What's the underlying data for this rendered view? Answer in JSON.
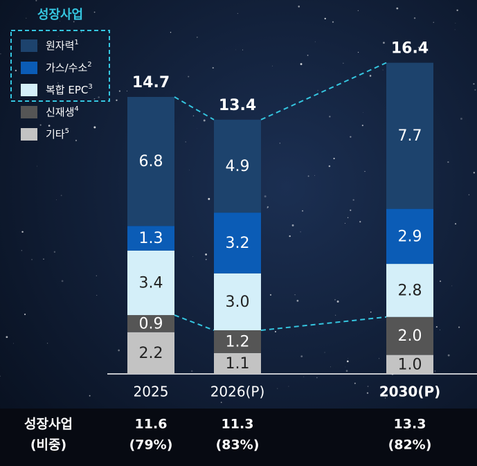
{
  "chart_data": {
    "type": "stacked-bar",
    "legend_title": "성장사업",
    "categories": [
      "2025",
      "2026(P)",
      "2030(P)"
    ],
    "highlight_category": 2,
    "series": [
      {
        "name": "기타",
        "note": "5",
        "color": "#c3c3c3",
        "text_color": "#222222",
        "values": [
          2.2,
          1.1,
          1.0
        ],
        "value_labels": [
          "2.2",
          "1.1",
          "1.0"
        ]
      },
      {
        "name": "신재생",
        "note": "4",
        "color": "#555555",
        "text_color": "#ffffff",
        "values": [
          0.9,
          1.2,
          2.0
        ],
        "value_labels": [
          "0.9",
          "1.2",
          "2.0"
        ]
      },
      {
        "name": "복합 EPC",
        "note": "3",
        "color": "#d4eff9",
        "text_color": "#222222",
        "values": [
          3.4,
          3.0,
          2.8
        ],
        "value_labels": [
          "3.4",
          "3.0",
          "2.8"
        ]
      },
      {
        "name": "가스/수소",
        "note": "2",
        "color": "#0b5cb6",
        "text_color": "#ffffff",
        "values": [
          1.3,
          3.2,
          2.9
        ],
        "value_labels": [
          "1.3",
          "3.2",
          "2.9"
        ]
      },
      {
        "name": "원자력",
        "note": "1",
        "color": "#1d436d",
        "text_color": "#ffffff",
        "values": [
          6.8,
          4.9,
          7.7
        ],
        "value_labels": [
          "6.8",
          "4.9",
          "7.7"
        ]
      }
    ],
    "totals": [
      14.7,
      13.4,
      16.4
    ],
    "growth": {
      "label": "성장사업",
      "sublabel": "(비중)",
      "values": [
        11.6,
        11.3,
        13.3
      ],
      "shares": [
        "(79%)",
        "(83%)",
        "(82%)"
      ]
    }
  }
}
